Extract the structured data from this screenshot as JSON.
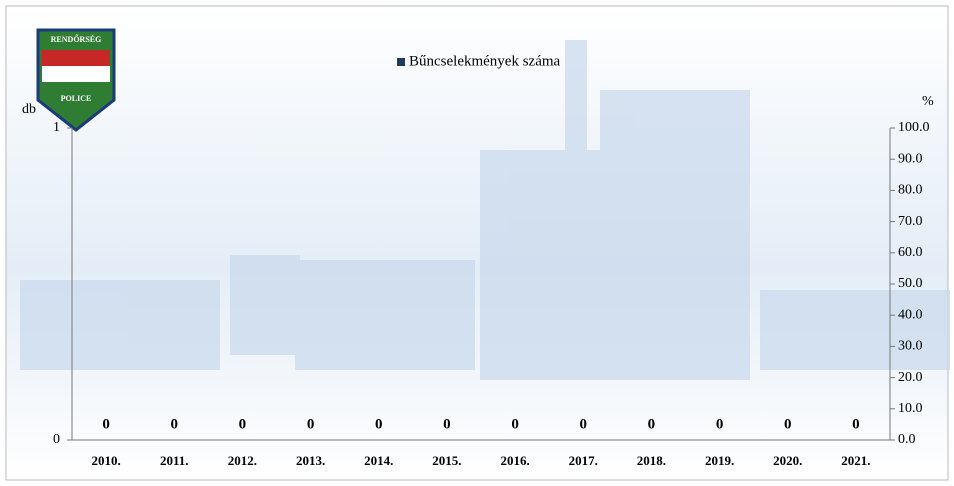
{
  "chart_data": {
    "type": "bar",
    "legend": "Bűncselekmények száma",
    "y_label": "db",
    "y2_label": "%",
    "categories": [
      "2010.",
      "2011.",
      "2012.",
      "2013.",
      "2014.",
      "2015.",
      "2016.",
      "2017.",
      "2018.",
      "2019.",
      "2020.",
      "2021."
    ],
    "values": [
      0,
      0,
      0,
      0,
      0,
      0,
      0,
      0,
      0,
      0,
      0,
      0
    ],
    "color": "#1f3864",
    "ylim": [
      0,
      1
    ],
    "yticks": [
      0,
      1
    ],
    "y2lim": [
      0,
      100
    ],
    "y2ticks": [
      {
        "value": 0,
        "label": "0.0"
      },
      {
        "value": 10,
        "label": "10.0"
      },
      {
        "value": 20,
        "label": "20.0"
      },
      {
        "value": 30,
        "label": "30.0"
      },
      {
        "value": 40,
        "label": "40.0"
      },
      {
        "value": 50,
        "label": "50.0"
      },
      {
        "value": 60,
        "label": "60.0"
      },
      {
        "value": 70,
        "label": "70.0"
      },
      {
        "value": 80,
        "label": "80.0"
      },
      {
        "value": 90,
        "label": "90.0"
      },
      {
        "value": 100,
        "label": "100.0"
      }
    ]
  },
  "logo": {
    "top": "RENDŐRSÉG",
    "bottom": "POLICE"
  }
}
